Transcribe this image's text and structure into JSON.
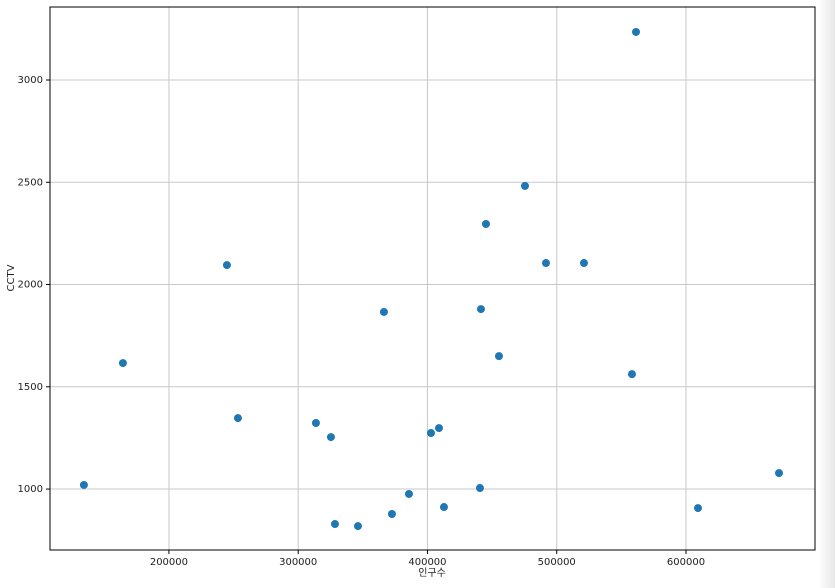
{
  "chart_data": {
    "type": "scatter",
    "x_label": "인구수",
    "y_label": "CCTV",
    "color": "#1f77b4",
    "grid": true,
    "x": [
      134240,
      164410,
      244870,
      253380,
      313730,
      325340,
      328430,
      346230,
      366340,
      372530,
      385690,
      402710,
      408900,
      412770,
      440620,
      441390,
      445260,
      455320,
      475440,
      491680,
      521080,
      558220,
      561320,
      609280,
      671950
    ],
    "values": [
      1020,
      1616,
      2095,
      1347,
      1323,
      1254,
      829,
      819,
      1866,
      878,
      976,
      1274,
      1298,
      912,
      1005,
      1880,
      2296,
      1650,
      2482,
      2105,
      2105,
      1562,
      3235,
      907,
      1078
    ],
    "xlim": [
      108000,
      699800
    ],
    "ylim": [
      702,
      3357
    ],
    "xticks": [
      200000,
      300000,
      400000,
      500000,
      600000
    ],
    "yticks": [
      1000,
      1500,
      2000,
      2500,
      3000
    ]
  }
}
